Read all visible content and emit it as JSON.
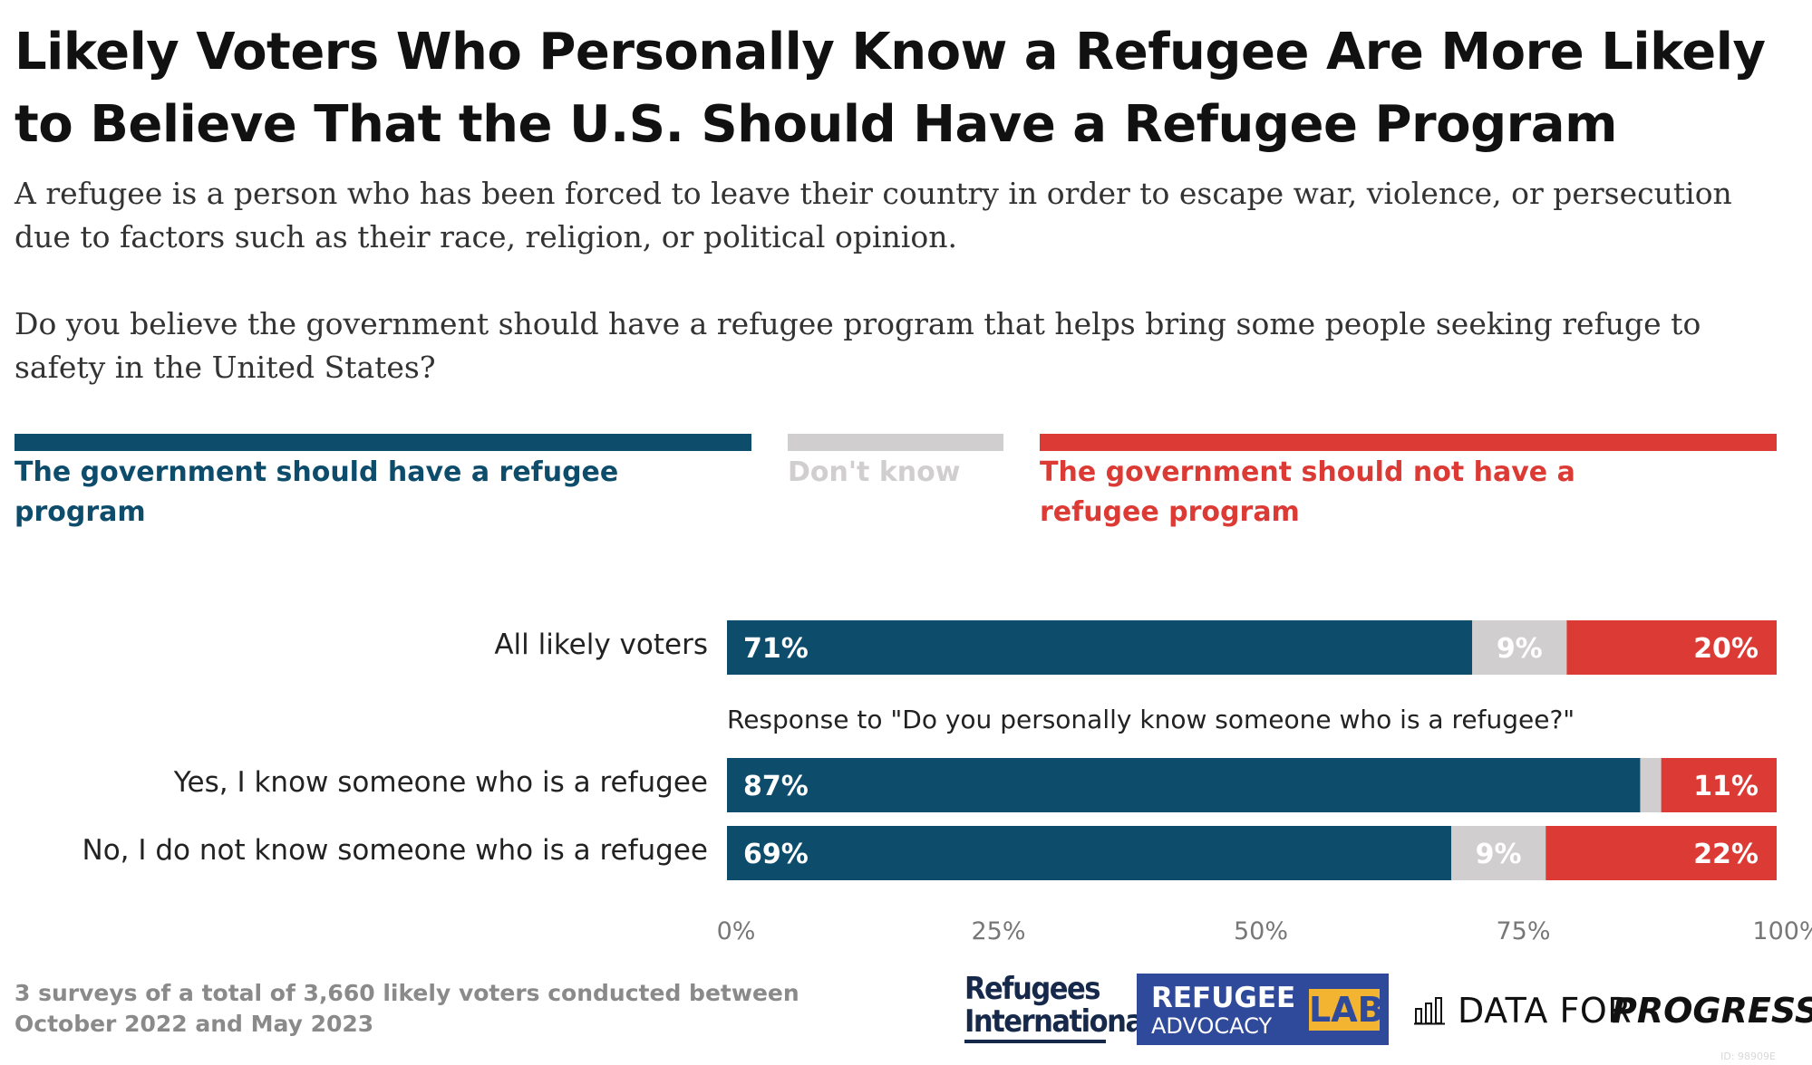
{
  "title": "Likely Voters Who Personally Know a Refugee Are More Likely to Believe That the U.S. Should Have a Refugee Program",
  "subtitle": {
    "definition": "A refugee is a person who has been forced to leave their country in order to escape war, violence, or persecution due to factors such as their race, religion, or political opinion.",
    "question": "Do you believe the government should have a refugee program that helps bring some people seeking refuge to safety in the United States?"
  },
  "colors": {
    "have": "#0d4c6b",
    "dont_know": "#d1cecf",
    "not_have": "#dc3a34"
  },
  "chart_data": {
    "type": "bar",
    "orientation": "horizontal",
    "stacked": true,
    "categories": [
      "All likely voters",
      "Yes, I know someone who is a refugee",
      "No, I do not know someone who is a refugee"
    ],
    "group_label": "Response to \"Do you personally know someone who is a refugee?\"",
    "series": [
      {
        "name": "The government should have a refugee program",
        "values": [
          71,
          87,
          69
        ],
        "labels": [
          "71%",
          "87%",
          "69%"
        ],
        "color": "#0d4c6b"
      },
      {
        "name": "Don't know",
        "values": [
          9,
          2,
          9
        ],
        "labels": [
          "9%",
          "",
          "9%"
        ],
        "color": "#d1cecf"
      },
      {
        "name": "The government should not have a refugee program",
        "values": [
          20,
          11,
          22
        ],
        "labels": [
          "20%",
          "11%",
          "22%"
        ],
        "color": "#dc3a34"
      }
    ],
    "xlim": [
      0,
      100
    ],
    "x_ticks": [
      "0%",
      "25%",
      "50%",
      "75%",
      "100%"
    ],
    "legend_position": "top",
    "grid": false
  },
  "footnote": "3 surveys of a total of 3,660 likely voters conducted between October 2022 and May 2023",
  "logos": {
    "refugees_international": "Refugees International",
    "ral_line1": "REFUGEE",
    "ral_line2": "ADVOCACY",
    "ral_lab": "LAB",
    "dfp_plain": "DATA FOR",
    "dfp_bold": "PROGRESS"
  },
  "id_mark": "ID: 98909E"
}
